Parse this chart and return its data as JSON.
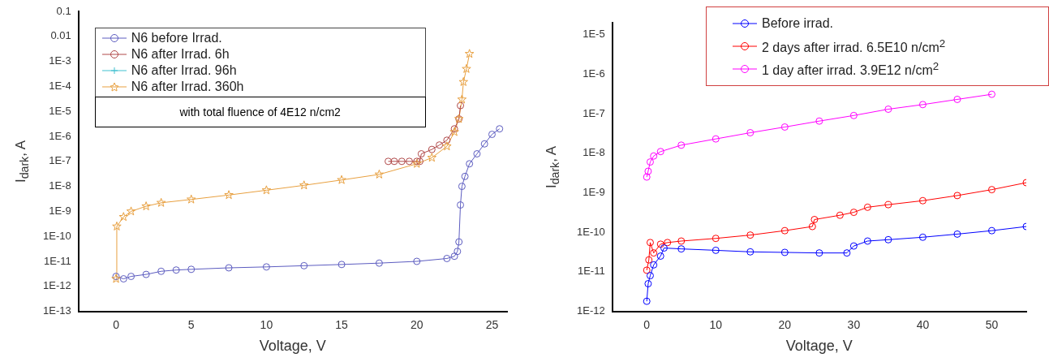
{
  "chart_data": [
    {
      "type": "line",
      "xlabel": "Voltage, V",
      "ylabel": "I$_{dark}$, A",
      "log": "y",
      "legend": "top left",
      "line_style": "solid",
      "grid": false,
      "xlim": [
        -2.5,
        26
      ],
      "xticks": [
        0,
        5,
        10,
        15,
        20,
        25
      ],
      "ylim": [
        1e-13,
        0.1
      ],
      "yticks": [
        {
          "value": 1e-13,
          "label": "1E-13"
        },
        {
          "value": 1e-12,
          "label": "1E-12"
        },
        {
          "value": 1e-11,
          "label": "1E-11"
        },
        {
          "value": 1e-10,
          "label": "1E-10"
        },
        {
          "value": 1e-09,
          "label": "1E-9"
        },
        {
          "value": 1e-08,
          "label": "1E-8"
        },
        {
          "value": 1e-07,
          "label": "1E-7"
        },
        {
          "value": 1e-06,
          "label": "1E-6"
        },
        {
          "value": 1e-05,
          "label": "1E-5"
        },
        {
          "value": 0.0001,
          "label": "1E-4"
        },
        {
          "value": 0.001,
          "label": "1E-3"
        },
        0.01,
        0.1
      ],
      "annotations": [
        "with total fluence of 4E12 n/cm2"
      ],
      "series": [
        {
          "name": "N6 before Irrad.",
          "color": "#5c5cc0",
          "marker": "circle",
          "x": [
            0,
            0.5,
            1,
            2,
            3,
            4,
            5,
            7.5,
            10,
            12.5,
            15,
            17.5,
            20,
            22,
            22.5,
            22.7,
            22.8,
            22.9,
            23,
            23.2,
            23.5,
            24,
            24.5,
            25,
            25.5
          ],
          "values": [
            2.5e-12,
            2e-12,
            2.5e-12,
            3e-12,
            4e-12,
            4.5e-12,
            4.8e-12,
            5.5e-12,
            6e-12,
            6.7e-12,
            7.5e-12,
            8.5e-12,
            1e-11,
            1.3e-11,
            1.6e-11,
            2.5e-11,
            6e-11,
            1.8e-09,
            1e-08,
            2.5e-08,
            8e-08,
            2e-07,
            5e-07,
            1.2e-06,
            2e-06
          ]
        },
        {
          "name": "N6 after Irrad. 6h",
          "color": "#b04848",
          "marker": "circle",
          "x": [
            18.1,
            18.5,
            19,
            19.5,
            20,
            20.2,
            20.3,
            21,
            21.5,
            22,
            22.5,
            22.8,
            22.9
          ],
          "values": [
            1e-07,
            1e-07,
            1e-07,
            1e-07,
            1e-07,
            1e-07,
            2e-07,
            3e-07,
            4.5e-07,
            7e-07,
            2e-06,
            5e-06,
            1.7e-05
          ]
        },
        {
          "name": "N6 after Irrad. 96h",
          "color": "#40c0d0",
          "marker": "cross"
        },
        {
          "name": "N6 after Irrad. 360h",
          "color": "#e8a040",
          "marker": "star",
          "x": [
            0,
            0.05,
            0.5,
            1,
            2,
            3,
            5,
            7.5,
            10,
            12.5,
            15,
            17.5,
            20,
            21,
            22,
            22.5,
            22.8,
            23,
            23.1,
            23.3,
            23.5
          ],
          "values": [
            2e-12,
            2.5e-10,
            6e-10,
            1e-09,
            1.6e-09,
            2.2e-09,
            3e-09,
            4.5e-09,
            7e-09,
            1.1e-08,
            1.8e-08,
            3e-08,
            8e-08,
            1.4e-07,
            4e-07,
            1.5e-06,
            5e-06,
            3e-05,
            0.00015,
            0.0005,
            0.002
          ]
        }
      ]
    },
    {
      "type": "line",
      "xlabel": "Voltage, V",
      "ylabel": "I$_{dark}$, A",
      "log": "y",
      "legend": "top right",
      "line_style": "solid",
      "grid": false,
      "xlim": [
        -5,
        55
      ],
      "xticks": [
        0,
        10,
        20,
        30,
        40,
        50
      ],
      "ylim": [
        1e-12,
        2e-05
      ],
      "yticks": [
        {
          "value": 1e-12,
          "label": "1E-12"
        },
        {
          "value": 1e-11,
          "label": "1E-11"
        },
        {
          "value": 1e-10,
          "label": "1E-10"
        },
        {
          "value": 1e-09,
          "label": "1E-9"
        },
        {
          "value": 1e-08,
          "label": "1E-8"
        },
        {
          "value": 1e-07,
          "label": "1E-7"
        },
        {
          "value": 1e-06,
          "label": "1E-6"
        },
        {
          "value": 1e-05,
          "label": "1E-5"
        }
      ],
      "series": [
        {
          "name": "Before irrad.",
          "color": "#0000ff",
          "marker": "circle",
          "x": [
            0,
            0.2,
            0.5,
            1,
            2,
            2.5,
            5,
            10,
            15,
            20,
            25,
            29,
            30,
            32,
            35,
            40,
            45,
            50,
            55
          ],
          "values": [
            1.8e-12,
            5e-12,
            8e-12,
            1.5e-11,
            2.5e-11,
            4e-11,
            3.8e-11,
            3.5e-11,
            3.2e-11,
            3.1e-11,
            3e-11,
            3e-11,
            4.5e-11,
            6e-11,
            6.5e-11,
            7.5e-11,
            9e-11,
            1.1e-10,
            1.4e-10
          ]
        },
        {
          "name": "2 days after irrad. 6.5E10 n/cm$^{2}$",
          "color": "#ff0000",
          "marker": "circle",
          "x": [
            0,
            0.3,
            0.5,
            1,
            2,
            3,
            5,
            10,
            15,
            20,
            24,
            24.3,
            28,
            30,
            32,
            35,
            40,
            45,
            50,
            55
          ],
          "values": [
            1.1e-11,
            2e-11,
            5.5e-11,
            3e-11,
            5e-11,
            5.5e-11,
            6e-11,
            7e-11,
            8.5e-11,
            1.1e-10,
            1.4e-10,
            2.1e-10,
            2.7e-10,
            3.2e-10,
            4.3e-10,
            5e-10,
            6.3e-10,
            8.5e-10,
            1.2e-09,
            1.8e-09
          ]
        },
        {
          "name": "1 day after irrad. 3.9E12 n/cm$^{2}$",
          "color": "#ff00ff",
          "marker": "circle",
          "x": [
            0,
            0.2,
            0.5,
            1,
            2,
            5,
            10,
            15,
            20,
            25,
            30,
            35,
            40,
            45,
            50
          ],
          "values": [
            2.5e-09,
            3.5e-09,
            6e-09,
            8.5e-09,
            1.1e-08,
            1.6e-08,
            2.3e-08,
            3.3e-08,
            4.6e-08,
            6.5e-08,
            9e-08,
            1.3e-07,
            1.7e-07,
            2.3e-07,
            3.1e-07
          ]
        }
      ]
    }
  ]
}
